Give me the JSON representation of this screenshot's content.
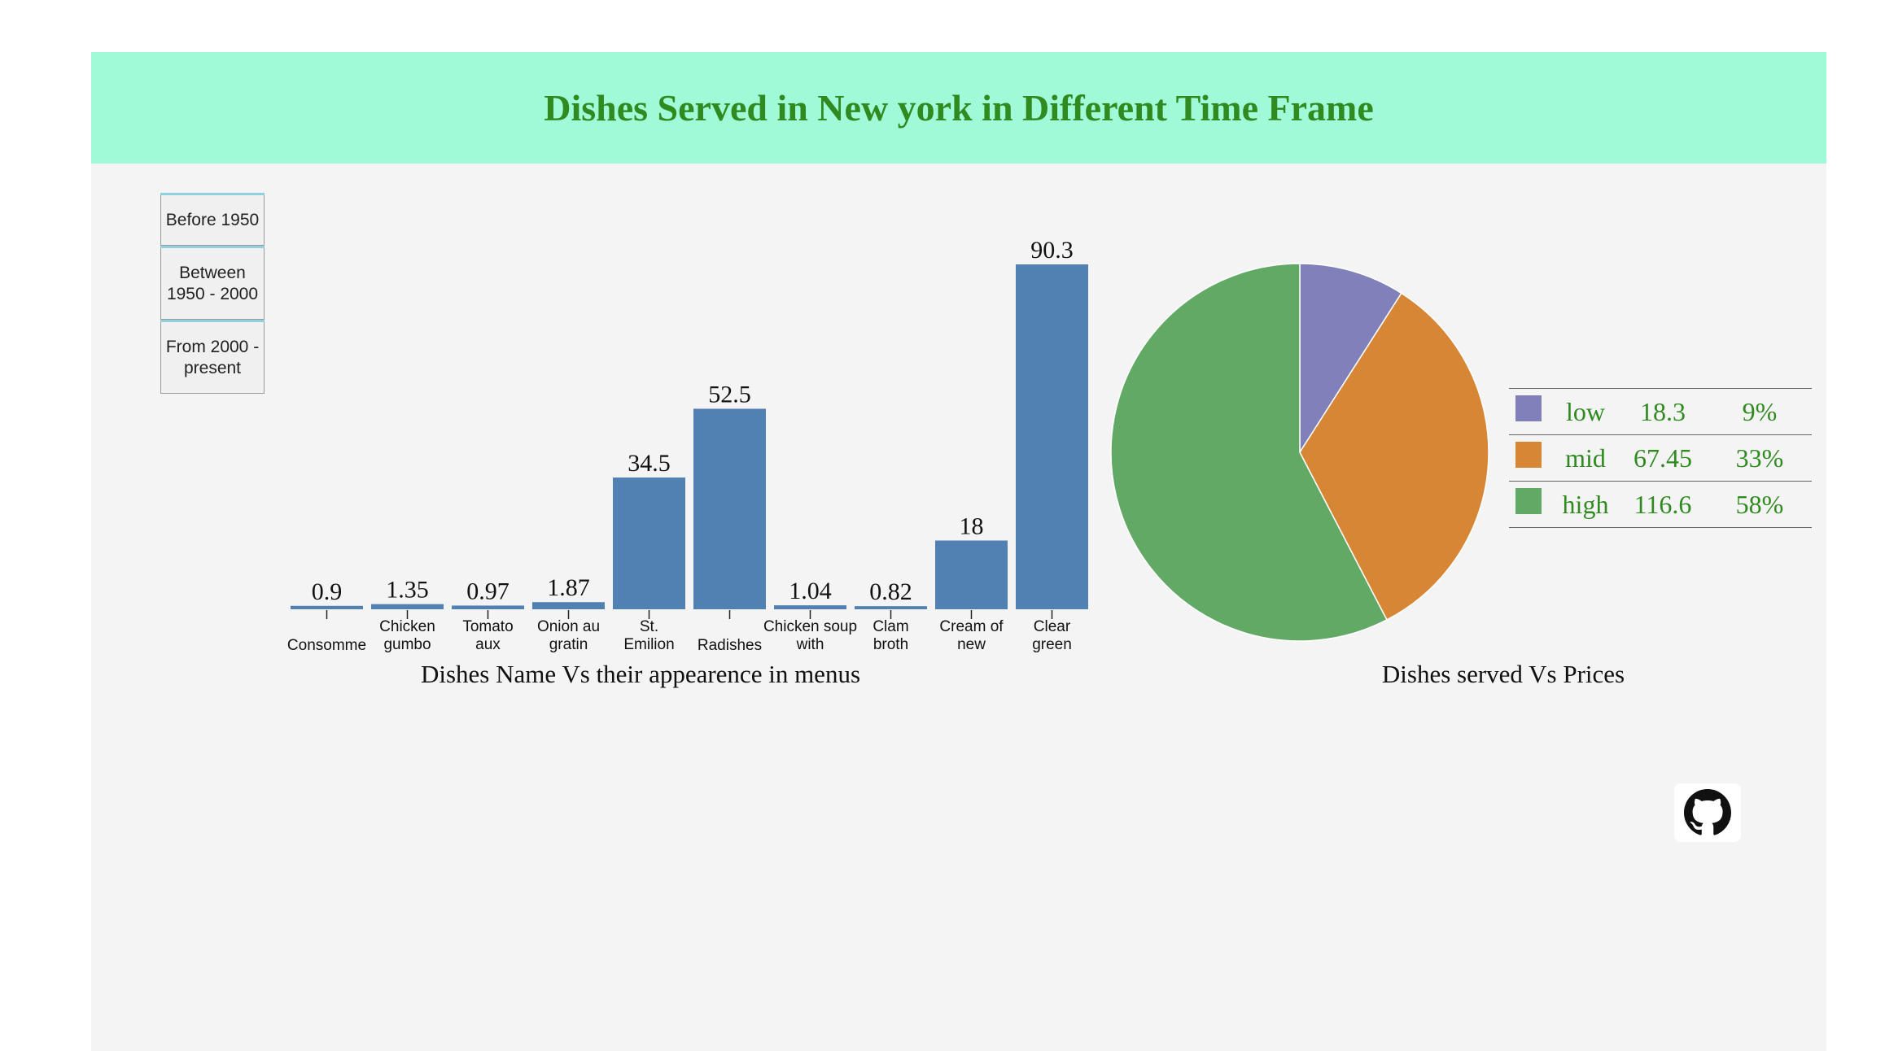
{
  "header": {
    "title": "Dishes Served in New york in Different Time Frame"
  },
  "controls": {
    "periods": [
      "Before 1950",
      "Between 1950 - 2000",
      "From 2000 - present"
    ]
  },
  "colors": {
    "header_bg": "#a1fad7",
    "title": "#2f8a1f",
    "bar": "#5181b3",
    "low": "#8080bb",
    "mid": "#d68635",
    "high": "#61a965"
  },
  "links": {
    "github_icon": "github-icon"
  },
  "chart_data": [
    {
      "type": "bar",
      "caption": "Dishes Name Vs their appearence in menus",
      "categories": [
        "Consomme",
        "Chicken gumbo",
        "Tomato aux",
        "Onion au gratin",
        "St. Emilion",
        "Radishes",
        "Chicken soup with",
        "Clam broth",
        "Cream of new",
        "Clear green"
      ],
      "values": [
        0.9,
        1.35,
        0.97,
        1.87,
        34.5,
        52.5,
        1.04,
        0.82,
        18,
        90.3
      ],
      "value_labels": [
        "0.9",
        "1.35",
        "0.97",
        "1.87",
        "34.5",
        "52.5",
        "1.04",
        "0.82",
        "18",
        "90.3"
      ],
      "ylim": [
        0,
        90.3
      ]
    },
    {
      "type": "pie",
      "caption": "Dishes served Vs Prices",
      "slices": [
        {
          "label": "low",
          "value": 18.3,
          "value_label": "18.3",
          "percent": "9%",
          "color": "#8080bb"
        },
        {
          "label": "mid",
          "value": 67.45,
          "value_label": "67.45",
          "percent": "33%",
          "color": "#d68635"
        },
        {
          "label": "high",
          "value": 116.6,
          "value_label": "116.6",
          "percent": "58%",
          "color": "#61a965"
        }
      ]
    }
  ]
}
